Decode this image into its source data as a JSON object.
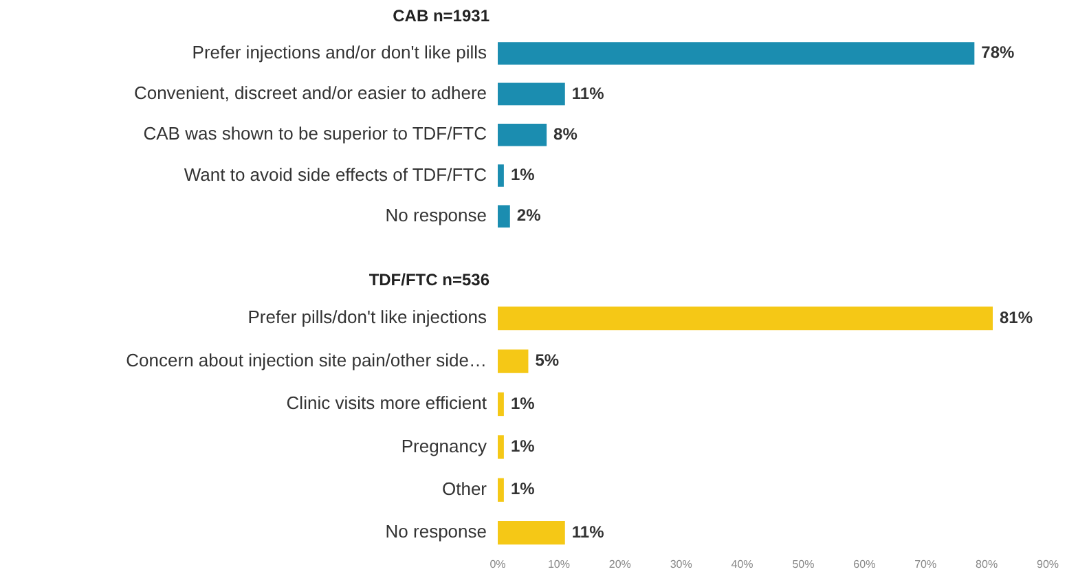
{
  "chart_data": [
    {
      "type": "bar",
      "orientation": "horizontal",
      "title": "CAB n=1931",
      "categories": [
        "Prefer injections and/or don't like pills",
        "Convenient, discreet and/or easier to adhere",
        "CAB was shown to be superior to TDF/FTC",
        "Want to avoid side effects of TDF/FTC",
        "No response"
      ],
      "values": [
        78,
        11,
        8,
        1,
        2
      ],
      "value_labels": [
        "78%",
        "11%",
        "8%",
        "1%",
        "2%"
      ],
      "color": "#1b8db0",
      "xlim": [
        0,
        90
      ],
      "tick_labels": "y",
      "grid": false,
      "legend": false
    },
    {
      "type": "bar",
      "orientation": "horizontal",
      "title": "TDF/FTC n=536",
      "categories": [
        "Prefer pills/don't like injections",
        "Concern about injection site pain/other side…",
        "Clinic visits more efficient",
        "Pregnancy",
        "Other",
        "No response"
      ],
      "values": [
        81,
        5,
        1,
        1,
        1,
        11
      ],
      "value_labels": [
        "81%",
        "5%",
        "1%",
        "1%",
        "1%",
        "11%"
      ],
      "color": "#f5c816",
      "xlim": [
        0,
        90
      ],
      "xticks": [
        {
          "value": 0,
          "label": "0%"
        },
        {
          "value": 10,
          "label": "10%"
        },
        {
          "value": 20,
          "label": "20%"
        },
        {
          "value": 30,
          "label": "30%"
        },
        {
          "value": 40,
          "label": "40%"
        },
        {
          "value": 50,
          "label": "50%"
        },
        {
          "value": 60,
          "label": "60%"
        },
        {
          "value": 70,
          "label": "70%"
        },
        {
          "value": 80,
          "label": "80%"
        },
        {
          "value": 90,
          "label": "90%"
        }
      ],
      "grid": false,
      "legend": false
    }
  ]
}
